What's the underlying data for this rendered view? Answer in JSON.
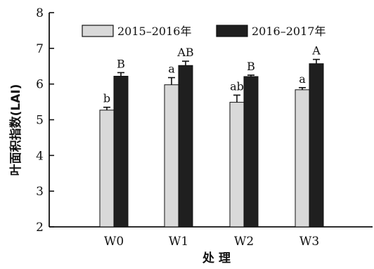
{
  "chart_data": {
    "type": "bar",
    "title": "",
    "xlabel": "处 理",
    "ylabel": "叶面积指数(LAI)",
    "ylim": [
      2,
      8
    ],
    "yticks": [
      2,
      3,
      4,
      5,
      6,
      7,
      8
    ],
    "categories": [
      "W0",
      "W1",
      "W2",
      "W3"
    ],
    "legend_position": "top",
    "grid": false,
    "series": [
      {
        "name": "2015–2016年",
        "color": "#d9d9d9",
        "values": [
          5.27,
          5.98,
          5.49,
          5.84
        ],
        "errors": [
          0.08,
          0.2,
          0.2,
          0.06
        ],
        "labels": [
          "b",
          "a",
          "ab",
          "a"
        ]
      },
      {
        "name": "2016–2017年",
        "color": "#1f1f1f",
        "values": [
          6.22,
          6.52,
          6.21,
          6.57
        ],
        "errors": [
          0.1,
          0.12,
          0.04,
          0.12
        ],
        "labels": [
          "B",
          "AB",
          "B",
          "A"
        ]
      }
    ]
  }
}
